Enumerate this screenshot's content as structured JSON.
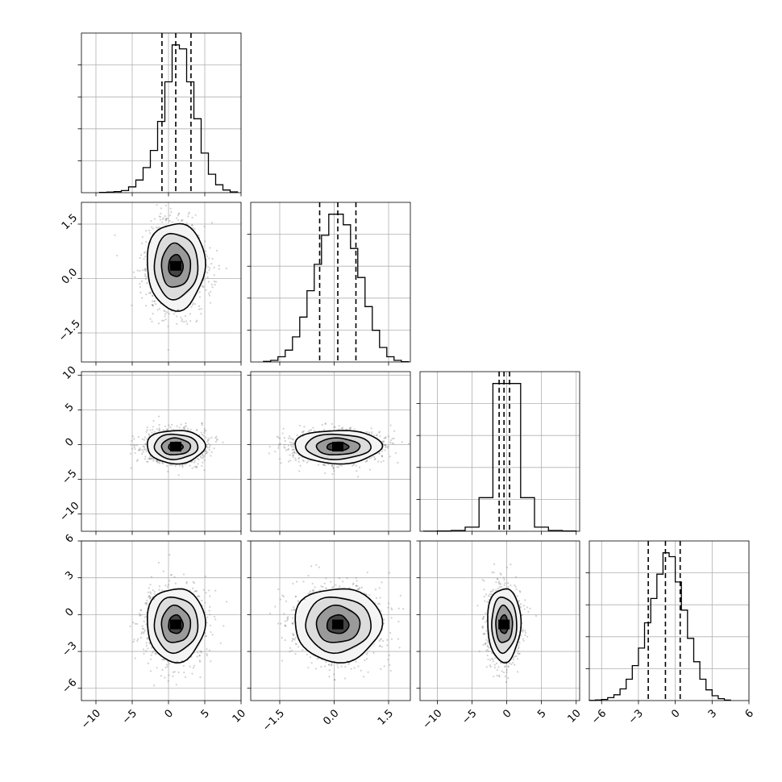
{
  "chart_data": {
    "type": "corner",
    "grid": true,
    "n_params": 4,
    "parameters": [
      {
        "index": 0,
        "range": [
          -12,
          10
        ],
        "ticks": [
          -10,
          -5,
          0,
          5,
          10
        ],
        "tick_labels": [
          "−10",
          "−5",
          "0",
          "5",
          "10"
        ],
        "quantiles": [
          -0.9,
          1.0,
          3.1
        ]
      },
      {
        "index": 1,
        "range": [
          -2.3,
          2.1
        ],
        "ticks": [
          -1.5,
          0.0,
          1.5
        ],
        "tick_labels": [
          "−1.5",
          "0.0",
          "1.5"
        ],
        "quantiles": [
          -0.4,
          0.1,
          0.6
        ]
      },
      {
        "index": 2,
        "range": [
          -12.5,
          10.5
        ],
        "ticks": [
          -10,
          -5,
          0,
          5,
          10
        ],
        "tick_labels": [
          "−10",
          "−5",
          "0",
          "5",
          "10"
        ],
        "quantiles": [
          -1.1,
          -0.4,
          0.4
        ]
      },
      {
        "index": 3,
        "range": [
          -7,
          6
        ],
        "ticks": [
          -6,
          -3,
          0,
          3,
          6
        ],
        "tick_labels": [
          "−6",
          "−3",
          "0",
          "3",
          "6"
        ],
        "quantiles": [
          -2.2,
          -0.8,
          0.4
        ]
      }
    ],
    "histograms": [
      {
        "param": 0,
        "bin_centers": [
          -9,
          -8,
          -7,
          -6,
          -5,
          -4,
          -3,
          -2,
          -1,
          0,
          1,
          2,
          3,
          4,
          5,
          6,
          7,
          8,
          9
        ],
        "values": [
          1,
          2,
          4,
          8,
          22,
          48,
          95,
          160,
          270,
          420,
          560,
          545,
          420,
          280,
          150,
          70,
          30,
          10,
          3
        ]
      },
      {
        "param": 1,
        "bin_centers": [
          -1.85,
          -1.65,
          -1.45,
          -1.25,
          -1.05,
          -0.85,
          -0.65,
          -0.45,
          -0.25,
          -0.05,
          0.15,
          0.35,
          0.55,
          0.75,
          0.95,
          1.15,
          1.35,
          1.55,
          1.75,
          1.95
        ],
        "values": [
          2,
          6,
          20,
          45,
          95,
          170,
          270,
          370,
          480,
          560,
          560,
          520,
          430,
          320,
          210,
          120,
          55,
          20,
          6,
          1
        ]
      },
      {
        "param": 2,
        "bin_centers": [
          -11,
          -9,
          -7,
          -5,
          -3,
          -1,
          1,
          3,
          5,
          7,
          9
        ],
        "values": [
          4,
          10,
          40,
          200,
          1650,
          7250,
          7250,
          1650,
          200,
          40,
          10
        ]
      },
      {
        "param": 3,
        "bin_centers": [
          -6.75,
          -6.25,
          -5.75,
          -5.25,
          -4.75,
          -4.25,
          -3.75,
          -3.25,
          -2.75,
          -2.25,
          -1.75,
          -1.25,
          -0.75,
          -0.25,
          0.25,
          0.75,
          1.25,
          1.75,
          2.25,
          2.75,
          3.25,
          3.75,
          4.25
        ],
        "values": [
          2,
          6,
          12,
          30,
          60,
          120,
          220,
          360,
          540,
          800,
          1050,
          1300,
          1520,
          1480,
          1220,
          930,
          640,
          400,
          220,
          110,
          50,
          20,
          5
        ]
      }
    ],
    "pairs": [
      {
        "x": 0,
        "y": 1,
        "center": [
          1,
          0.35
        ],
        "sigma": [
          2.0,
          0.6
        ],
        "rho": 0
      },
      {
        "x": 0,
        "y": 2,
        "center": [
          1,
          -0.3
        ],
        "sigma": [
          2.0,
          1.2
        ],
        "rho": 0
      },
      {
        "x": 1,
        "y": 2,
        "center": [
          0.1,
          -0.3
        ],
        "sigma": [
          0.6,
          1.2
        ],
        "rho": 0
      },
      {
        "x": 0,
        "y": 3,
        "center": [
          1,
          -0.8
        ],
        "sigma": [
          2.0,
          1.5
        ],
        "rho": 0
      },
      {
        "x": 1,
        "y": 3,
        "center": [
          0.1,
          -0.8
        ],
        "sigma": [
          0.6,
          1.5
        ],
        "rho": 0
      },
      {
        "x": 2,
        "y": 3,
        "center": [
          -0.4,
          -0.8
        ],
        "sigma": [
          1.2,
          1.5
        ],
        "rho": 0
      }
    ],
    "contour_levels_sigma": [
      0.5,
      1.0,
      1.5,
      2.0
    ]
  }
}
